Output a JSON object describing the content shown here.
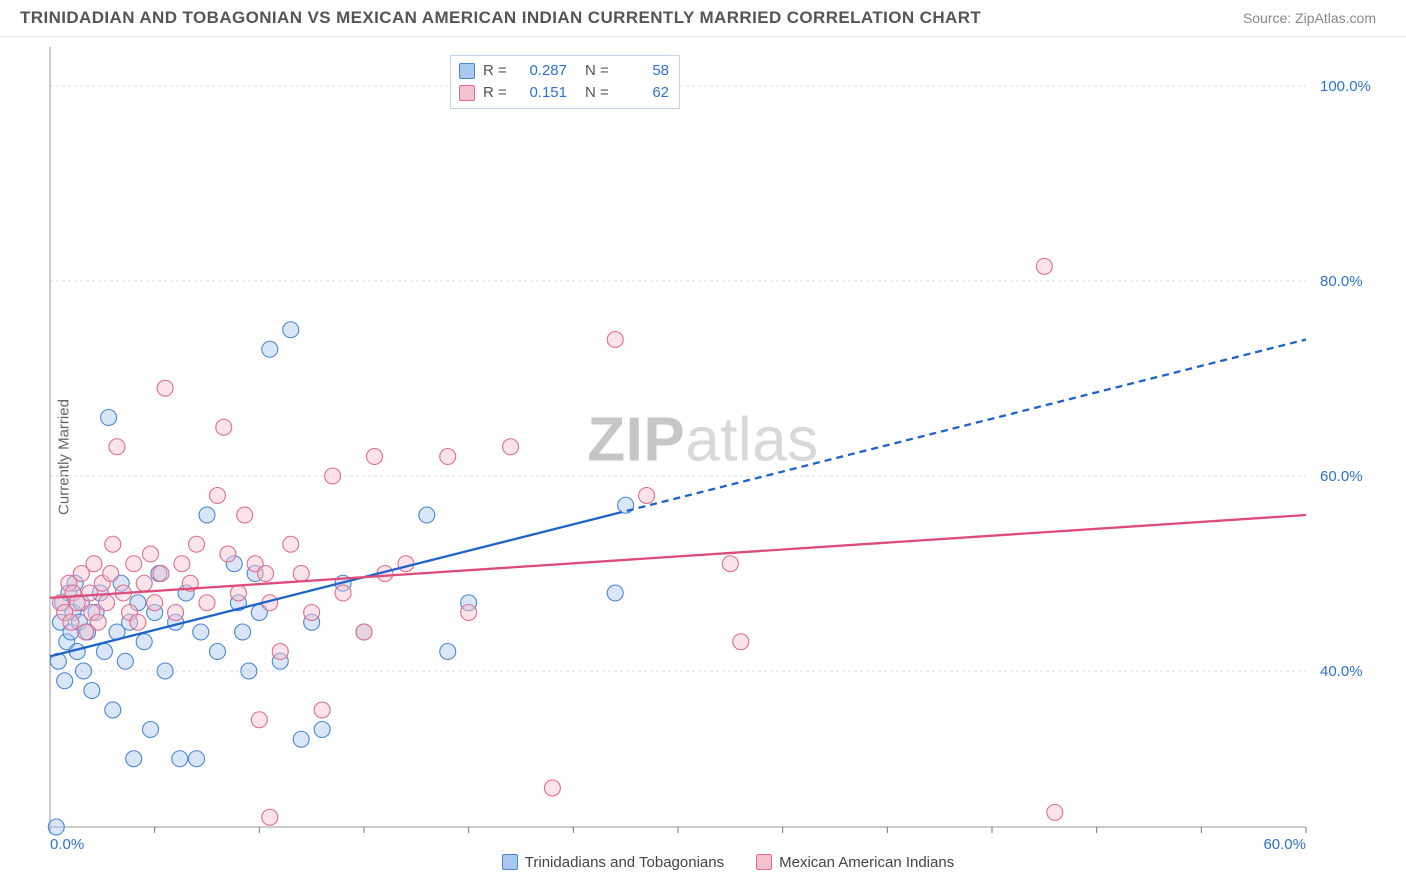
{
  "title": "TRINIDADIAN AND TOBAGONIAN VS MEXICAN AMERICAN INDIAN CURRENTLY MARRIED CORRELATION CHART",
  "source": "Source: ZipAtlas.com",
  "watermark_a": "ZIP",
  "watermark_b": "atlas",
  "ylabel": "Currently Married",
  "chart": {
    "type": "scatter-regression",
    "xlim": [
      0,
      60
    ],
    "ylim": [
      24,
      104
    ],
    "x_ticks": [
      0,
      60
    ],
    "x_tick_labels": [
      "0.0%",
      "60.0%"
    ],
    "y_ticks": [
      40,
      60,
      80,
      100
    ],
    "y_tick_labels": [
      "40.0%",
      "60.0%",
      "80.0%",
      "100.0%"
    ],
    "grid_y": [
      40,
      60,
      80,
      100
    ],
    "plot_bg": "#ffffff",
    "grid_color": "#d8dde3",
    "frame_color": "#999999",
    "text_color": "#555555",
    "tick_label_color": "#2d72d2",
    "marker_radius": 8,
    "marker_opacity": 0.45,
    "series": [
      {
        "key": "tt",
        "name": "Trinidadians and Tobagonians",
        "fill": "#a9c7ef",
        "stroke": "#4a86d4",
        "r_value": "0.287",
        "n_value": "58",
        "reg_line": {
          "color": "#1f63c9",
          "width": 2.3,
          "x1": 0,
          "y1": 41.5,
          "x2": 60,
          "y2": 74,
          "solid_until_x": 27
        },
        "points": [
          [
            0.4,
            41
          ],
          [
            0.5,
            45
          ],
          [
            0.6,
            47
          ],
          [
            0.7,
            39
          ],
          [
            0.8,
            43
          ],
          [
            0.9,
            48
          ],
          [
            1.0,
            44
          ],
          [
            1.1,
            46
          ],
          [
            1.2,
            49
          ],
          [
            1.3,
            42
          ],
          [
            1.4,
            45
          ],
          [
            1.5,
            47
          ],
          [
            1.6,
            40
          ],
          [
            1.8,
            44
          ],
          [
            2.0,
            38
          ],
          [
            2.2,
            46
          ],
          [
            2.4,
            48
          ],
          [
            2.6,
            42
          ],
          [
            2.8,
            66
          ],
          [
            3.0,
            36
          ],
          [
            3.2,
            44
          ],
          [
            3.4,
            49
          ],
          [
            3.6,
            41
          ],
          [
            3.8,
            45
          ],
          [
            4.0,
            31
          ],
          [
            4.2,
            47
          ],
          [
            4.5,
            43
          ],
          [
            4.8,
            34
          ],
          [
            5.0,
            46
          ],
          [
            5.2,
            50
          ],
          [
            5.5,
            40
          ],
          [
            6.0,
            45
          ],
          [
            6.2,
            31
          ],
          [
            6.5,
            48
          ],
          [
            7.0,
            31
          ],
          [
            7.2,
            44
          ],
          [
            7.5,
            56
          ],
          [
            8.0,
            42
          ],
          [
            8.8,
            51
          ],
          [
            9.0,
            47
          ],
          [
            9.2,
            44
          ],
          [
            9.5,
            40
          ],
          [
            9.8,
            50
          ],
          [
            10.0,
            46
          ],
          [
            10.5,
            73
          ],
          [
            11.0,
            41
          ],
          [
            11.5,
            75
          ],
          [
            12.0,
            33
          ],
          [
            12.5,
            45
          ],
          [
            13.0,
            34
          ],
          [
            14.0,
            49
          ],
          [
            15.0,
            44
          ],
          [
            18.0,
            56
          ],
          [
            19.0,
            42
          ],
          [
            20.0,
            47
          ],
          [
            27.0,
            48
          ],
          [
            27.5,
            57
          ],
          [
            0.3,
            24
          ]
        ]
      },
      {
        "key": "mai",
        "name": "Mexican American Indians",
        "fill": "#f4c2cf",
        "stroke": "#e06c8e",
        "r_value": "0.151",
        "n_value": "62",
        "reg_line": {
          "color": "#de4b78",
          "width": 2.3,
          "x1": 0,
          "y1": 47.5,
          "x2": 60,
          "y2": 56
        },
        "points": [
          [
            0.5,
            47
          ],
          [
            0.7,
            46
          ],
          [
            0.9,
            49
          ],
          [
            1.0,
            45
          ],
          [
            1.1,
            48
          ],
          [
            1.3,
            47
          ],
          [
            1.5,
            50
          ],
          [
            1.7,
            44
          ],
          [
            1.9,
            48
          ],
          [
            2.0,
            46
          ],
          [
            2.1,
            51
          ],
          [
            2.3,
            45
          ],
          [
            2.5,
            49
          ],
          [
            2.7,
            47
          ],
          [
            2.9,
            50
          ],
          [
            3.0,
            53
          ],
          [
            3.2,
            63
          ],
          [
            3.5,
            48
          ],
          [
            3.8,
            46
          ],
          [
            4.0,
            51
          ],
          [
            4.2,
            45
          ],
          [
            4.5,
            49
          ],
          [
            4.8,
            52
          ],
          [
            5.0,
            47
          ],
          [
            5.3,
            50
          ],
          [
            5.5,
            69
          ],
          [
            6.0,
            46
          ],
          [
            6.3,
            51
          ],
          [
            6.7,
            49
          ],
          [
            7.0,
            53
          ],
          [
            7.5,
            47
          ],
          [
            8.0,
            58
          ],
          [
            8.3,
            65
          ],
          [
            8.5,
            52
          ],
          [
            9.0,
            48
          ],
          [
            9.3,
            56
          ],
          [
            9.8,
            51
          ],
          [
            10.0,
            35
          ],
          [
            10.3,
            50
          ],
          [
            10.5,
            47
          ],
          [
            11.0,
            42
          ],
          [
            11.5,
            53
          ],
          [
            12.0,
            50
          ],
          [
            12.5,
            46
          ],
          [
            13.0,
            36
          ],
          [
            13.5,
            60
          ],
          [
            14.0,
            48
          ],
          [
            15.0,
            44
          ],
          [
            15.5,
            62
          ],
          [
            16.0,
            50
          ],
          [
            17.0,
            51
          ],
          [
            19.0,
            62
          ],
          [
            20.0,
            46
          ],
          [
            22.0,
            63
          ],
          [
            24.0,
            28
          ],
          [
            27.0,
            74
          ],
          [
            28.5,
            58
          ],
          [
            32.5,
            51
          ],
          [
            33.0,
            43
          ],
          [
            47.5,
            81.5
          ],
          [
            48.0,
            25.5
          ],
          [
            10.5,
            25
          ]
        ]
      }
    ],
    "legend_top": {
      "r_label": "R =",
      "n_label": "N ="
    }
  }
}
